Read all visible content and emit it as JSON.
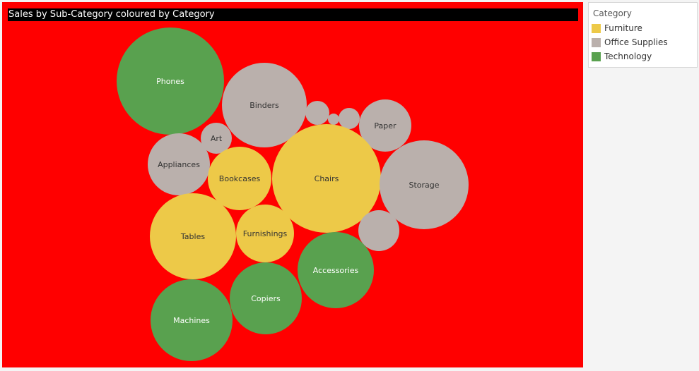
{
  "chart_data": {
    "type": "bubble",
    "title": "Sales by Sub-Category coloured by Category",
    "background_color": "#ff0000",
    "legend": {
      "title": "Category",
      "placement": "right",
      "entries": [
        {
          "label": "Furniture",
          "color": "#edc948"
        },
        {
          "label": "Office Supplies",
          "color": "#bab0ac"
        },
        {
          "label": "Technology",
          "color": "#59a14f"
        }
      ]
    },
    "bubbles": [
      {
        "label": "Phones",
        "category": "Technology"
      },
      {
        "label": "Binders",
        "category": "Office Supplies"
      },
      {
        "label": "",
        "category": "Office Supplies"
      },
      {
        "label": "",
        "category": "Office Supplies"
      },
      {
        "label": "",
        "category": "Office Supplies"
      },
      {
        "label": "Paper",
        "category": "Office Supplies"
      },
      {
        "label": "Art",
        "category": "Office Supplies"
      },
      {
        "label": "Appliances",
        "category": "Office Supplies"
      },
      {
        "label": "Bookcases",
        "category": "Furniture"
      },
      {
        "label": "Chairs",
        "category": "Furniture"
      },
      {
        "label": "Storage",
        "category": "Office Supplies"
      },
      {
        "label": "",
        "category": "Office Supplies"
      },
      {
        "label": "Tables",
        "category": "Furniture"
      },
      {
        "label": "Furnishings",
        "category": "Furniture"
      },
      {
        "label": "Accessories",
        "category": "Technology"
      },
      {
        "label": "Copiers",
        "category": "Technology"
      },
      {
        "label": "Machines",
        "category": "Technology"
      }
    ]
  }
}
